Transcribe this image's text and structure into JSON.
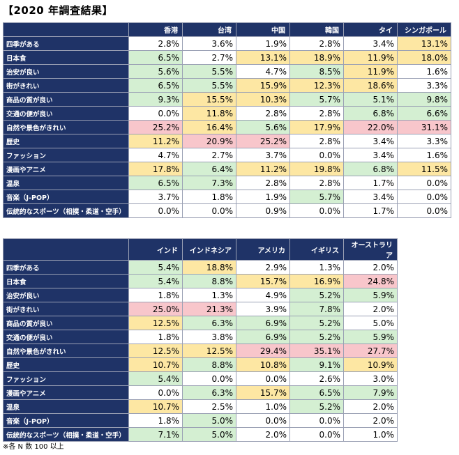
{
  "title": "【2020 年調査結果】",
  "footnote": "※各 N 数 100 以上",
  "tables": [
    {
      "countries": [
        "香港",
        "台湾",
        "中国",
        "韓国",
        "タイ",
        "シンガポール"
      ],
      "rows": [
        {
          "label": "四季がある",
          "values": [
            "2.8%",
            "3.6%",
            "1.9%",
            "2.8%",
            "3.4%",
            "13.1%"
          ],
          "colors": [
            "w",
            "w",
            "w",
            "w",
            "w",
            "y"
          ]
        },
        {
          "label": "日本食",
          "values": [
            "6.5%",
            "2.7%",
            "13.1%",
            "18.9%",
            "11.9%",
            "18.0%"
          ],
          "colors": [
            "g",
            "w",
            "y",
            "y",
            "y",
            "y"
          ]
        },
        {
          "label": "治安が良い",
          "values": [
            "5.6%",
            "5.5%",
            "4.7%",
            "8.5%",
            "11.9%",
            "1.6%"
          ],
          "colors": [
            "g",
            "g",
            "w",
            "g",
            "y",
            "w"
          ]
        },
        {
          "label": "街がきれい",
          "values": [
            "6.5%",
            "5.5%",
            "15.9%",
            "12.3%",
            "18.6%",
            "3.3%"
          ],
          "colors": [
            "g",
            "g",
            "y",
            "y",
            "y",
            "w"
          ]
        },
        {
          "label": "商品の質が良い",
          "values": [
            "9.3%",
            "15.5%",
            "10.3%",
            "5.7%",
            "5.1%",
            "9.8%"
          ],
          "colors": [
            "g",
            "y",
            "y",
            "g",
            "g",
            "g"
          ]
        },
        {
          "label": "交通の便が良い",
          "values": [
            "0.0%",
            "11.8%",
            "2.8%",
            "2.8%",
            "6.8%",
            "6.6%"
          ],
          "colors": [
            "w",
            "y",
            "w",
            "w",
            "g",
            "g"
          ]
        },
        {
          "label": "自然や景色がきれい",
          "values": [
            "25.2%",
            "16.4%",
            "5.6%",
            "17.9%",
            "22.0%",
            "31.1%"
          ],
          "colors": [
            "r",
            "y",
            "g",
            "y",
            "r",
            "r"
          ]
        },
        {
          "label": "歴史",
          "values": [
            "11.2%",
            "20.9%",
            "25.2%",
            "2.8%",
            "3.4%",
            "3.3%"
          ],
          "colors": [
            "y",
            "r",
            "r",
            "w",
            "w",
            "w"
          ]
        },
        {
          "label": "ファッション",
          "values": [
            "4.7%",
            "2.7%",
            "3.7%",
            "0.0%",
            "3.4%",
            "1.6%"
          ],
          "colors": [
            "w",
            "w",
            "w",
            "w",
            "w",
            "w"
          ]
        },
        {
          "label": "漫画やアニメ",
          "values": [
            "17.8%",
            "6.4%",
            "11.2%",
            "19.8%",
            "6.8%",
            "11.5%"
          ],
          "colors": [
            "y",
            "g",
            "y",
            "y",
            "g",
            "y"
          ]
        },
        {
          "label": "温泉",
          "values": [
            "6.5%",
            "7.3%",
            "2.8%",
            "2.8%",
            "1.7%",
            "0.0%"
          ],
          "colors": [
            "g",
            "g",
            "w",
            "w",
            "w",
            "w"
          ]
        },
        {
          "label": "音楽（J-POP）",
          "values": [
            "3.7%",
            "1.8%",
            "1.9%",
            "5.7%",
            "3.4%",
            "0.0%"
          ],
          "colors": [
            "w",
            "w",
            "w",
            "g",
            "w",
            "w"
          ]
        },
        {
          "label": "伝統的なスポーツ（相撲・柔道・空手）",
          "values": [
            "0.0%",
            "0.0%",
            "0.9%",
            "0.0%",
            "1.7%",
            "0.0%"
          ],
          "colors": [
            "w",
            "w",
            "w",
            "w",
            "w",
            "w"
          ]
        }
      ]
    },
    {
      "countries": [
        "インド",
        "インドネシア",
        "アメリカ",
        "イギリス",
        "オーストラリア"
      ],
      "rows": [
        {
          "label": "四季がある",
          "values": [
            "5.4%",
            "18.8%",
            "2.9%",
            "1.3%",
            "2.0%"
          ],
          "colors": [
            "g",
            "y",
            "w",
            "w",
            "w"
          ]
        },
        {
          "label": "日本食",
          "values": [
            "5.4%",
            "8.8%",
            "15.7%",
            "16.9%",
            "24.8%"
          ],
          "colors": [
            "g",
            "g",
            "y",
            "y",
            "r"
          ]
        },
        {
          "label": "治安が良い",
          "values": [
            "1.8%",
            "1.3%",
            "4.9%",
            "5.2%",
            "5.9%"
          ],
          "colors": [
            "w",
            "w",
            "w",
            "g",
            "g"
          ]
        },
        {
          "label": "街がきれい",
          "values": [
            "25.0%",
            "21.3%",
            "3.9%",
            "7.8%",
            "2.0%"
          ],
          "colors": [
            "r",
            "r",
            "w",
            "g",
            "w"
          ]
        },
        {
          "label": "商品の質が良い",
          "values": [
            "12.5%",
            "6.3%",
            "6.9%",
            "5.2%",
            "5.0%"
          ],
          "colors": [
            "y",
            "g",
            "g",
            "g",
            "w"
          ]
        },
        {
          "label": "交通の便が良い",
          "values": [
            "1.8%",
            "3.8%",
            "6.9%",
            "5.2%",
            "5.9%"
          ],
          "colors": [
            "w",
            "w",
            "g",
            "g",
            "g"
          ]
        },
        {
          "label": "自然や景色がきれい",
          "values": [
            "12.5%",
            "12.5%",
            "29.4%",
            "35.1%",
            "27.7%"
          ],
          "colors": [
            "y",
            "y",
            "r",
            "r",
            "r"
          ]
        },
        {
          "label": "歴史",
          "values": [
            "10.7%",
            "8.8%",
            "10.8%",
            "9.1%",
            "10.9%"
          ],
          "colors": [
            "y",
            "g",
            "y",
            "g",
            "y"
          ]
        },
        {
          "label": "ファッション",
          "values": [
            "5.4%",
            "0.0%",
            "0.0%",
            "2.6%",
            "3.0%"
          ],
          "colors": [
            "g",
            "w",
            "w",
            "w",
            "w"
          ]
        },
        {
          "label": "漫画やアニメ",
          "values": [
            "0.0%",
            "6.3%",
            "15.7%",
            "6.5%",
            "7.9%"
          ],
          "colors": [
            "w",
            "g",
            "y",
            "g",
            "g"
          ]
        },
        {
          "label": "温泉",
          "values": [
            "10.7%",
            "2.5%",
            "1.0%",
            "5.2%",
            "2.0%"
          ],
          "colors": [
            "y",
            "w",
            "w",
            "g",
            "w"
          ]
        },
        {
          "label": "音楽（J-POP）",
          "values": [
            "1.8%",
            "5.0%",
            "0.0%",
            "0.0%",
            "2.0%"
          ],
          "colors": [
            "w",
            "g",
            "w",
            "w",
            "w"
          ]
        },
        {
          "label": "伝統的なスポーツ（相撲・柔道・空手）",
          "values": [
            "7.1%",
            "5.0%",
            "2.0%",
            "0.0%",
            "1.0%"
          ],
          "colors": [
            "g",
            "g",
            "w",
            "w",
            "w"
          ]
        }
      ]
    }
  ]
}
